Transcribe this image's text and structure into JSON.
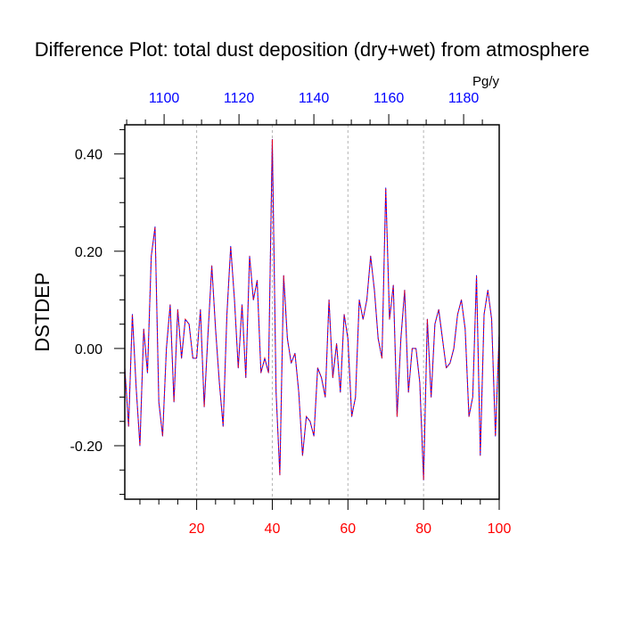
{
  "chart_data": {
    "type": "line",
    "title": "Difference Plot: total dust deposition (dry+wet) from atmosphere",
    "ylabel": "DSTDEP",
    "top_axis_units": "Pg/y",
    "xlim": [
      1,
      100
    ],
    "ylim": [
      -0.31,
      0.46
    ],
    "x_ticks": [
      20,
      40,
      60,
      80,
      100
    ],
    "x_tick_labels": [
      "20",
      "40",
      "60",
      "80",
      "100"
    ],
    "x_minor_step": 5,
    "y_ticks": [
      -0.2,
      0.0,
      0.2,
      0.4
    ],
    "y_tick_labels": [
      "-0.20",
      "0.00",
      "0.20",
      "0.40"
    ],
    "y_minor_step": 0.05,
    "top_axis_ticks": [
      1100,
      1120,
      1140,
      1160,
      1180
    ],
    "top_axis_tick_labels": [
      "1100",
      "1120",
      "1140",
      "1160",
      "1180"
    ],
    "top_axis_range": [
      1089.5,
      1189.5
    ],
    "grid": "vertical-dashed-at-major-x",
    "colors": {
      "line_primary": "#0000ff",
      "line_dash": "#ff0000",
      "bottom_ticks": "#ff0000",
      "top_ticks": "#0000ff",
      "grid": "#b4b4b4"
    },
    "series": [
      {
        "x": [
          1,
          2,
          3,
          4,
          5,
          6,
          7,
          8,
          9,
          10,
          11,
          12,
          13,
          14,
          15,
          16,
          17,
          18,
          19,
          20,
          21,
          22,
          23,
          24,
          25,
          26,
          27,
          28,
          29,
          30,
          31,
          32,
          33,
          34,
          35,
          36,
          37,
          38,
          39,
          40,
          41,
          42,
          43,
          44,
          45,
          46,
          47,
          48,
          49,
          50,
          51,
          52,
          53,
          54,
          55,
          56,
          57,
          58,
          59,
          60,
          61,
          62,
          63,
          64,
          65,
          66,
          67,
          68,
          69,
          70,
          71,
          72,
          73,
          74,
          75,
          76,
          77,
          78,
          79,
          80,
          81,
          82,
          83,
          84,
          85,
          86,
          87,
          88,
          89,
          90,
          91,
          92,
          93,
          94,
          95,
          96,
          97,
          98,
          99,
          100
        ],
        "values": [
          -0.04,
          -0.16,
          0.07,
          -0.08,
          -0.2,
          0.04,
          -0.05,
          0.19,
          0.25,
          -0.11,
          -0.18,
          0.0,
          0.09,
          -0.11,
          0.08,
          -0.02,
          0.06,
          0.05,
          -0.02,
          -0.02,
          0.08,
          -0.12,
          0.03,
          0.17,
          0.04,
          -0.07,
          -0.16,
          0.07,
          0.21,
          0.1,
          -0.04,
          0.09,
          -0.06,
          0.19,
          0.1,
          0.14,
          -0.05,
          -0.02,
          -0.05,
          0.43,
          -0.09,
          -0.26,
          0.15,
          0.02,
          -0.03,
          -0.01,
          -0.09,
          -0.22,
          -0.14,
          -0.15,
          -0.18,
          -0.04,
          -0.06,
          -0.1,
          0.1,
          -0.06,
          0.01,
          -0.09,
          0.07,
          0.02,
          -0.14,
          -0.1,
          0.1,
          0.06,
          0.1,
          0.19,
          0.12,
          0.02,
          -0.02,
          0.33,
          0.06,
          0.13,
          -0.14,
          0.02,
          0.12,
          -0.09,
          0.0,
          0.0,
          -0.07,
          -0.27,
          0.06,
          -0.1,
          0.05,
          0.08,
          0.02,
          -0.04,
          -0.03,
          0.0,
          0.07,
          0.1,
          0.04,
          -0.14,
          -0.1,
          0.15,
          -0.22,
          0.07,
          0.12,
          0.06,
          -0.18,
          0.03
        ]
      }
    ]
  }
}
